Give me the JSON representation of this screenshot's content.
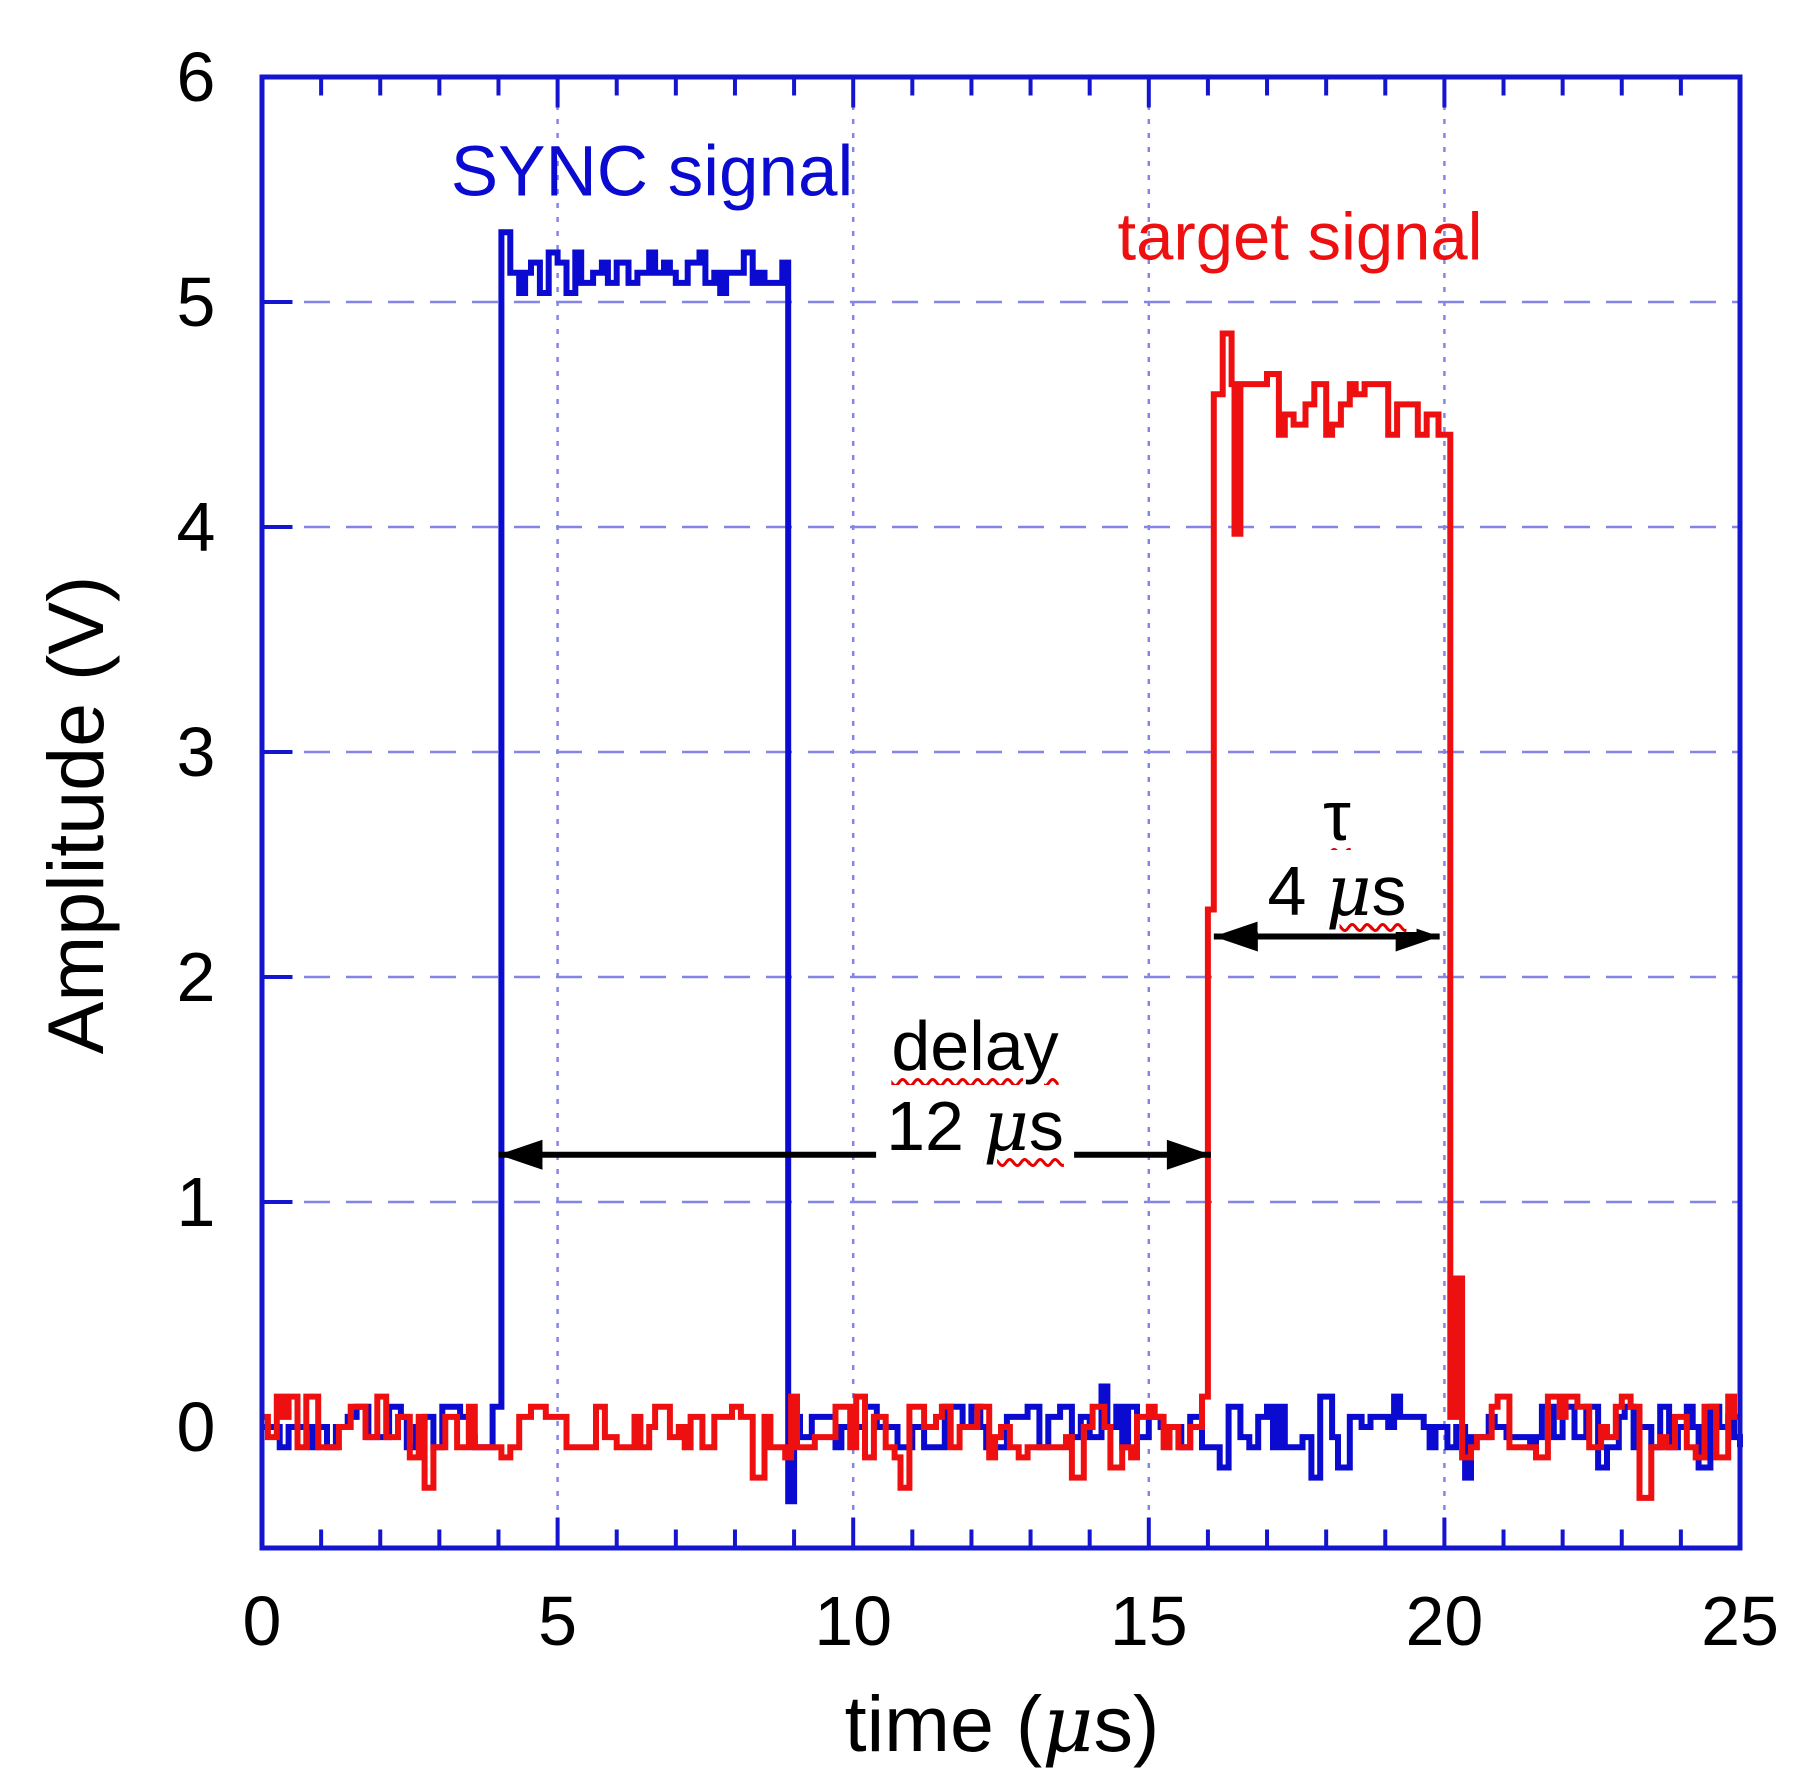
{
  "chart_data": {
    "type": "line",
    "title": "",
    "xlabel": {
      "pre": "time (",
      "mu": "μ",
      "post": "s)"
    },
    "ylabel": "Amplitude (V)",
    "xlim": [
      0,
      25
    ],
    "ylim": [
      -0.54,
      6
    ],
    "x_tick_values": [
      0,
      5,
      10,
      15,
      20,
      25
    ],
    "x_tick_labels": [
      "0",
      "5",
      "10",
      "15",
      "20",
      "25"
    ],
    "x_minor_tick_step_us": 1,
    "y_tick_values": [
      0,
      1,
      2,
      3,
      4,
      5,
      6
    ],
    "y_tick_labels": [
      "0",
      "1",
      "2",
      "3",
      "4",
      "5",
      "6"
    ],
    "grid": {
      "x_us": [
        5,
        10,
        15,
        20
      ],
      "y_v": [
        1,
        2,
        3,
        4,
        5
      ],
      "style": "dashed",
      "color": "#8585e8"
    },
    "axis_color": "#1515cf",
    "background": "#ffffff",
    "series": [
      {
        "name": "SYNC signal",
        "color": "#0a0ad0",
        "baseline_v": 0,
        "high_v": 5.14,
        "overshoot_v": 5.33,
        "overshoot_dur_us": 0.18,
        "slope_v_per_us": 0,
        "pulse_start_us": 3.97,
        "pulse_end_us": 8.87,
        "noise_pp_v": 0.2,
        "seed": 11,
        "events": [
          {
            "t_us": 8.88,
            "v": -0.33,
            "dur_us": 0.1
          }
        ]
      },
      {
        "name": "target signal",
        "color": "#ee1010",
        "baseline_v": 0,
        "high_v": 4.62,
        "overshoot_v": 4.85,
        "overshoot_dur_us": 0,
        "slope_v_per_us": -0.038,
        "pulse_start_us": 16.07,
        "pulse_end_us": 19.92,
        "noise_pp_v": 0.26,
        "seed": 23,
        "events": [
          {
            "t_us": 16.0,
            "v": 2.3,
            "dur_us": 0.06
          },
          {
            "t_us": 16.22,
            "v": 4.86,
            "dur_us": 0.14
          },
          {
            "t_us": 16.44,
            "v": 3.97,
            "dur_us": 0.1
          },
          {
            "t_us": 20.2,
            "v": 0.66,
            "dur_us": 0.1
          }
        ]
      }
    ],
    "annotations": {
      "delay": {
        "word": "delay",
        "value_num": "12 ",
        "unit_mu": "μ",
        "unit_s": "s",
        "arrow": {
          "from_us": 4.0,
          "to_us": 16.05,
          "at_v": 1.21
        }
      },
      "tau": {
        "symbol": "τ",
        "value_num": "4 ",
        "unit_mu": "μ",
        "unit_s": "s",
        "arrow": {
          "from_us": 16.1,
          "to_us": 19.92,
          "at_v": 2.18
        }
      }
    }
  }
}
